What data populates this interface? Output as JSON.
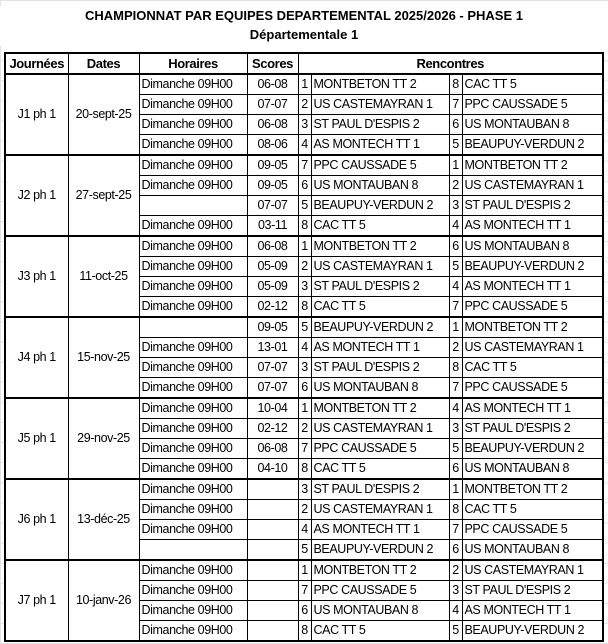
{
  "title": "CHAMPIONNAT PAR EQUIPES DEPARTEMENTAL 2025/2026 - PHASE 1",
  "subtitle": "Départementale 1",
  "headers": [
    "Journées",
    "Dates",
    "Horaires",
    "Scores",
    "Rencontres"
  ],
  "rounds": [
    {
      "journee": "J1 ph 1",
      "date": "20-sept-25",
      "matches": [
        {
          "time": "Dimanche 09H00",
          "score": "06-08",
          "home_n": "1",
          "home": "MONTBETON TT 2",
          "away_n": "8",
          "away": "CAC TT 5"
        },
        {
          "time": "Dimanche 09H00",
          "score": "07-07",
          "home_n": "2",
          "home": "US CASTEMAYRAN 1",
          "away_n": "7",
          "away": "PPC CAUSSADE 5"
        },
        {
          "time": "Dimanche 09H00",
          "score": "06-08",
          "home_n": "3",
          "home": "ST PAUL D'ESPIS 2",
          "away_n": "6",
          "away": "US MONTAUBAN 8"
        },
        {
          "time": "Dimanche 09H00",
          "score": "08-06",
          "home_n": "4",
          "home": "AS MONTECH TT 1",
          "away_n": "5",
          "away": "BEAUPUY-VERDUN 2"
        }
      ]
    },
    {
      "journee": "J2 ph 1",
      "date": "27-sept-25",
      "matches": [
        {
          "time": "Dimanche 09H00",
          "score": "09-05",
          "home_n": "7",
          "home": "PPC CAUSSADE 5",
          "away_n": "1",
          "away": "MONTBETON TT 2"
        },
        {
          "time": "Dimanche 09H00",
          "score": "09-05",
          "home_n": "6",
          "home": "US MONTAUBAN 8",
          "away_n": "2",
          "away": "US CASTEMAYRAN 1"
        },
        {
          "time": "",
          "score": "07-07",
          "home_n": "5",
          "home": "BEAUPUY-VERDUN 2",
          "away_n": "3",
          "away": "ST PAUL D'ESPIS 2"
        },
        {
          "time": "Dimanche 09H00",
          "score": "03-11",
          "home_n": "8",
          "home": "CAC TT 5",
          "away_n": "4",
          "away": "AS MONTECH TT 1"
        }
      ]
    },
    {
      "journee": "J3 ph 1",
      "date": "11-oct-25",
      "matches": [
        {
          "time": "Dimanche 09H00",
          "score": "06-08",
          "home_n": "1",
          "home": "MONTBETON TT 2",
          "away_n": "6",
          "away": "US MONTAUBAN 8"
        },
        {
          "time": "Dimanche 09H00",
          "score": "05-09",
          "home_n": "2",
          "home": "US CASTEMAYRAN 1",
          "away_n": "5",
          "away": "BEAUPUY-VERDUN 2"
        },
        {
          "time": "Dimanche 09H00",
          "score": "05-09",
          "home_n": "3",
          "home": "ST PAUL D'ESPIS 2",
          "away_n": "4",
          "away": "AS MONTECH TT 1"
        },
        {
          "time": "Dimanche 09H00",
          "score": "02-12",
          "home_n": "8",
          "home": "CAC TT 5",
          "away_n": "7",
          "away": "PPC CAUSSADE 5"
        }
      ]
    },
    {
      "journee": "J4 ph 1",
      "date": "15-nov-25",
      "matches": [
        {
          "time": "",
          "score": "09-05",
          "home_n": "5",
          "home": "BEAUPUY-VERDUN 2",
          "away_n": "1",
          "away": "MONTBETON TT 2"
        },
        {
          "time": "Dimanche 09H00",
          "score": "13-01",
          "home_n": "4",
          "home": "AS MONTECH TT 1",
          "away_n": "2",
          "away": "US CASTEMAYRAN 1"
        },
        {
          "time": "Dimanche 09H00",
          "score": "07-07",
          "home_n": "3",
          "home": "ST PAUL D'ESPIS 2",
          "away_n": "8",
          "away": "CAC TT 5"
        },
        {
          "time": "Dimanche 09H00",
          "score": "07-07",
          "home_n": "6",
          "home": "US MONTAUBAN 8",
          "away_n": "7",
          "away": "PPC CAUSSADE 5"
        }
      ]
    },
    {
      "journee": "J5 ph 1",
      "date": "29-nov-25",
      "matches": [
        {
          "time": "Dimanche 09H00",
          "score": "10-04",
          "home_n": "1",
          "home": "MONTBETON TT 2",
          "away_n": "4",
          "away": "AS MONTECH TT 1"
        },
        {
          "time": "Dimanche 09H00",
          "score": "02-12",
          "home_n": "2",
          "home": "US CASTEMAYRAN 1",
          "away_n": "3",
          "away": "ST PAUL D'ESPIS 2"
        },
        {
          "time": "Dimanche 09H00",
          "score": "06-08",
          "home_n": "7",
          "home": "PPC CAUSSADE 5",
          "away_n": "5",
          "away": "BEAUPUY-VERDUN 2"
        },
        {
          "time": "Dimanche 09H00",
          "score": "04-10",
          "home_n": "8",
          "home": "CAC TT 5",
          "away_n": "6",
          "away": "US MONTAUBAN 8"
        }
      ]
    },
    {
      "journee": "J6 ph 1",
      "date": "13-déc-25",
      "matches": [
        {
          "time": "Dimanche 09H00",
          "score": "",
          "home_n": "3",
          "home": "ST PAUL D'ESPIS 2",
          "away_n": "1",
          "away": "MONTBETON TT 2"
        },
        {
          "time": "Dimanche 09H00",
          "score": "",
          "home_n": "2",
          "home": "US CASTEMAYRAN 1",
          "away_n": "8",
          "away": "CAC TT 5"
        },
        {
          "time": "Dimanche 09H00",
          "score": "",
          "home_n": "4",
          "home": "AS MONTECH TT 1",
          "away_n": "7",
          "away": "PPC CAUSSADE 5"
        },
        {
          "time": "",
          "score": "",
          "home_n": "5",
          "home": "BEAUPUY-VERDUN 2",
          "away_n": "6",
          "away": "US MONTAUBAN 8"
        }
      ]
    },
    {
      "journee": "J7 ph 1",
      "date": "10-janv-26",
      "matches": [
        {
          "time": "Dimanche 09H00",
          "score": "",
          "home_n": "1",
          "home": "MONTBETON TT 2",
          "away_n": "2",
          "away": "US CASTEMAYRAN 1"
        },
        {
          "time": "Dimanche 09H00",
          "score": "",
          "home_n": "7",
          "home": "PPC CAUSSADE 5",
          "away_n": "3",
          "away": "ST PAUL D'ESPIS 2"
        },
        {
          "time": "Dimanche 09H00",
          "score": "",
          "home_n": "6",
          "home": "US MONTAUBAN 8",
          "away_n": "4",
          "away": "AS MONTECH TT 1"
        },
        {
          "time": "Dimanche 09H00",
          "score": "",
          "home_n": "8",
          "home": "CAC TT 5",
          "away_n": "5",
          "away": "BEAUPUY-VERDUN 2"
        }
      ]
    }
  ]
}
